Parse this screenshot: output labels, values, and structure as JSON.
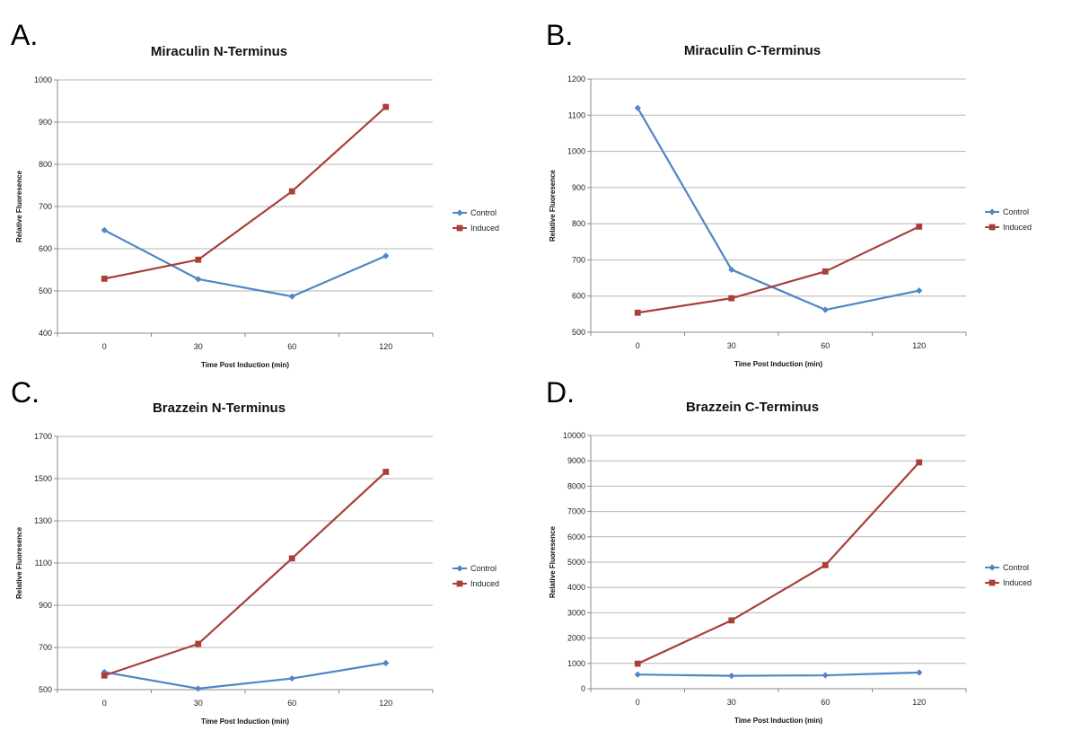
{
  "colors": {
    "Control": "#4f86c6",
    "Induced": "#a83f3b",
    "grid": "#b5b5b5"
  },
  "chart_data": [
    {
      "panel": "A.",
      "type": "line",
      "title": "Miraculin N-Terminus",
      "xlabel": "Time Post Induction (min)",
      "ylabel": "Relative Fluoresence",
      "categories": [
        "0",
        "30",
        "60",
        "120"
      ],
      "yticks": [
        400,
        500,
        600,
        700,
        800,
        900,
        1000
      ],
      "ylim": [
        400,
        1000
      ],
      "grid": true,
      "legend": "right",
      "series": [
        {
          "name": "Control",
          "values": [
            644,
            528,
            487,
            583
          ]
        },
        {
          "name": "Induced",
          "values": [
            529,
            574,
            736,
            936
          ]
        }
      ]
    },
    {
      "panel": "B.",
      "type": "line",
      "title": "Miraculin C-Terminus",
      "xlabel": "Time Post Induction (min)",
      "ylabel": "Relative Fluoresence",
      "categories": [
        "0",
        "30",
        "60",
        "120"
      ],
      "yticks": [
        500,
        600,
        700,
        800,
        900,
        1000,
        1100,
        1200
      ],
      "ylim": [
        500,
        1200
      ],
      "grid": true,
      "legend": "right",
      "series": [
        {
          "name": "Control",
          "values": [
            1120,
            673,
            562,
            615
          ]
        },
        {
          "name": "Induced",
          "values": [
            554,
            594,
            668,
            792
          ]
        }
      ]
    },
    {
      "panel": "C.",
      "type": "line",
      "title": "Brazzein N-Terminus",
      "xlabel": "Time Post Induction (min)",
      "ylabel": "Relative Fluoresence",
      "categories": [
        "0",
        "30",
        "60",
        "120"
      ],
      "yticks": [
        500,
        700,
        900,
        1100,
        1300,
        1500,
        1700
      ],
      "ylim": [
        500,
        1700
      ],
      "grid": true,
      "legend": "right",
      "series": [
        {
          "name": "Control",
          "values": [
            583,
            505,
            553,
            626
          ]
        },
        {
          "name": "Induced",
          "values": [
            567,
            717,
            1122,
            1532
          ]
        }
      ]
    },
    {
      "panel": "D.",
      "type": "line",
      "title": "Brazzein C-Terminus",
      "xlabel": "Time Post Induction (min)",
      "ylabel": "Relative Fluoresence",
      "categories": [
        "0",
        "30",
        "60",
        "120"
      ],
      "yticks": [
        0,
        1000,
        2000,
        3000,
        4000,
        5000,
        6000,
        7000,
        8000,
        9000,
        10000
      ],
      "ylim": [
        0,
        10000
      ],
      "grid": true,
      "legend": "right",
      "series": [
        {
          "name": "Control",
          "values": [
            560,
            510,
            530,
            640
          ]
        },
        {
          "name": "Induced",
          "values": [
            990,
            2700,
            4880,
            8940
          ]
        }
      ]
    }
  ]
}
